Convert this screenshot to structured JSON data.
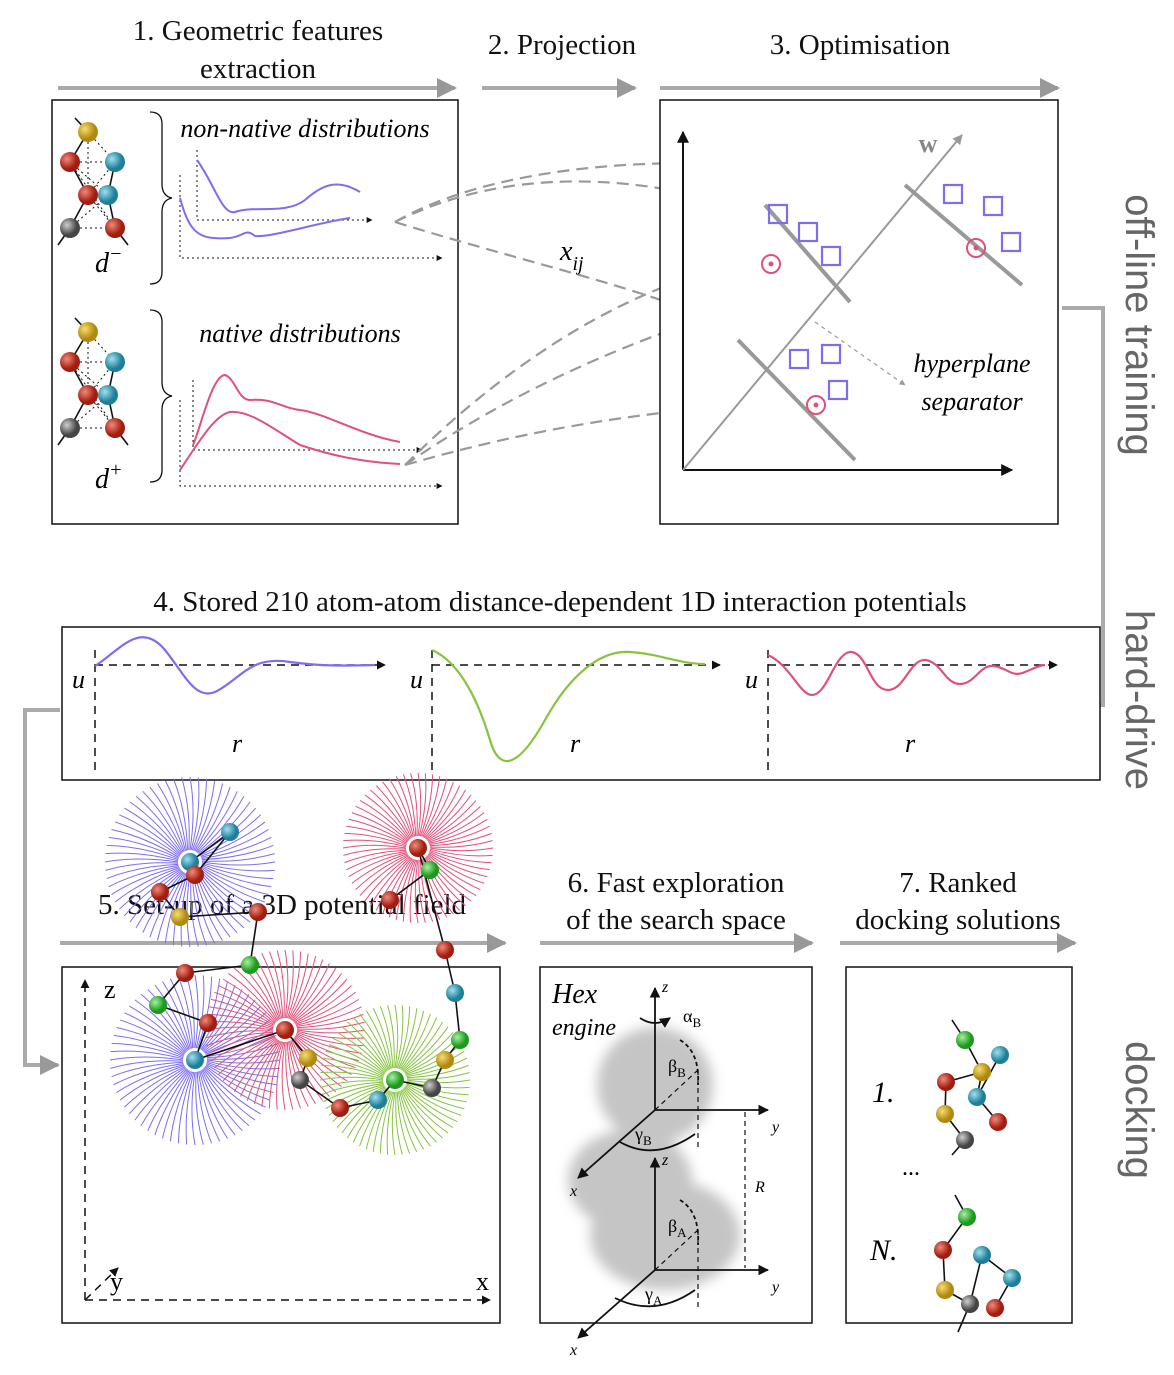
{
  "steps": {
    "s1": [
      "1. Geometric features",
      "extraction"
    ],
    "s2": "2. Projection",
    "s3": "3. Optimisation",
    "s4": "4. Stored 210 atom-atom distance-dependent 1D interaction potentials",
    "s5": "5. Set-up of a 3D potential field",
    "s6": [
      "6. Fast exploration",
      "of the search space"
    ],
    "s7": [
      "7. Ranked",
      "docking solutions"
    ]
  },
  "phases": [
    "off-line training",
    "hard-drive",
    "docking"
  ],
  "panel1": {
    "non_native": "non-native distributions",
    "native": "native distributions",
    "d_minus": {
      "base": "d",
      "sup": "−"
    },
    "d_plus": {
      "base": "d",
      "sup": "+"
    }
  },
  "projection": {
    "base": "x",
    "sub": "ij"
  },
  "panel3": {
    "w": "w",
    "separator": [
      "hyperplane",
      "separator"
    ]
  },
  "panel4": {
    "plots": [
      {
        "y": "u",
        "x": "r"
      },
      {
        "y": "u",
        "x": "r"
      },
      {
        "y": "u",
        "x": "r"
      }
    ]
  },
  "panel5": {
    "z": "z",
    "y": "y",
    "x": "x"
  },
  "panel6": {
    "engine": [
      "Hex",
      "engine"
    ],
    "upper": {
      "z": "z",
      "alpha": {
        "base": "α",
        "sub": "B"
      },
      "beta": {
        "base": "β",
        "sub": "B"
      },
      "gamma": {
        "base": "γ",
        "sub": "B"
      },
      "y": "y",
      "x": "x"
    },
    "R": "R",
    "lower": {
      "z": "z",
      "beta": {
        "base": "β",
        "sub": "A"
      },
      "gamma": {
        "base": "γ",
        "sub": "A"
      },
      "y": "y",
      "x": "x"
    }
  },
  "panel7": {
    "rank1": "1.",
    "ellipsis": "...",
    "rankN": "N."
  }
}
